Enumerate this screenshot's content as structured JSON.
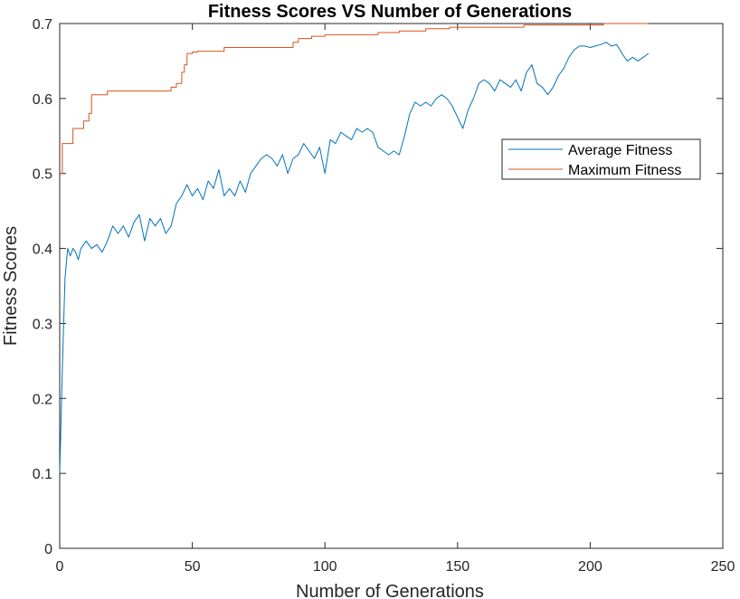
{
  "colors": {
    "average": "#0072BD",
    "maximum": "#D95319",
    "axis": "#262626",
    "background": "#ffffff"
  },
  "chart_data": {
    "type": "line",
    "title": "Fitness Scores VS Number of Generations",
    "xlabel": "Number of Generations",
    "ylabel": "Fitness Scores",
    "xlim": [
      0,
      250
    ],
    "ylim": [
      0,
      0.7
    ],
    "xticks": [
      "0",
      "50",
      "100",
      "150",
      "200",
      "250"
    ],
    "yticks": [
      "0",
      "0.1",
      "0.2",
      "0.3",
      "0.4",
      "0.5",
      "0.6",
      "0.7"
    ],
    "grid": false,
    "legend_location": "upper-right (inset)",
    "series": [
      {
        "name": "Average Fitness",
        "color": "#0072BD",
        "x": [
          0,
          1,
          2,
          3,
          4,
          5,
          6,
          7,
          8,
          10,
          12,
          14,
          16,
          18,
          20,
          22,
          24,
          26,
          28,
          30,
          32,
          34,
          36,
          38,
          40,
          42,
          44,
          46,
          48,
          50,
          52,
          54,
          56,
          58,
          60,
          62,
          64,
          66,
          68,
          70,
          72,
          74,
          76,
          78,
          80,
          82,
          84,
          86,
          88,
          90,
          92,
          94,
          96,
          98,
          100,
          102,
          104,
          106,
          108,
          110,
          112,
          114,
          116,
          118,
          120,
          122,
          124,
          126,
          128,
          130,
          132,
          134,
          136,
          138,
          140,
          142,
          144,
          146,
          148,
          150,
          152,
          154,
          156,
          158,
          160,
          162,
          164,
          166,
          168,
          170,
          172,
          174,
          176,
          178,
          180,
          182,
          184,
          186,
          188,
          190,
          192,
          194,
          196,
          198,
          200,
          202,
          204,
          206,
          208,
          210,
          212,
          214,
          216,
          218,
          220,
          222
        ],
        "y": [
          0.1,
          0.24,
          0.36,
          0.4,
          0.39,
          0.4,
          0.395,
          0.385,
          0.4,
          0.41,
          0.4,
          0.405,
          0.395,
          0.41,
          0.43,
          0.42,
          0.43,
          0.415,
          0.435,
          0.445,
          0.41,
          0.44,
          0.43,
          0.44,
          0.42,
          0.43,
          0.46,
          0.47,
          0.485,
          0.47,
          0.48,
          0.465,
          0.49,
          0.48,
          0.505,
          0.47,
          0.48,
          0.47,
          0.49,
          0.475,
          0.5,
          0.51,
          0.52,
          0.525,
          0.52,
          0.51,
          0.525,
          0.5,
          0.52,
          0.525,
          0.54,
          0.53,
          0.52,
          0.535,
          0.5,
          0.545,
          0.54,
          0.555,
          0.55,
          0.545,
          0.56,
          0.555,
          0.56,
          0.555,
          0.535,
          0.53,
          0.525,
          0.53,
          0.525,
          0.55,
          0.58,
          0.595,
          0.59,
          0.595,
          0.59,
          0.6,
          0.605,
          0.6,
          0.59,
          0.575,
          0.56,
          0.585,
          0.6,
          0.62,
          0.625,
          0.62,
          0.61,
          0.625,
          0.62,
          0.615,
          0.625,
          0.61,
          0.635,
          0.645,
          0.62,
          0.615,
          0.605,
          0.615,
          0.63,
          0.64,
          0.655,
          0.665,
          0.67,
          0.67,
          0.668,
          0.67,
          0.672,
          0.675,
          0.67,
          0.672,
          0.66,
          0.65,
          0.655,
          0.65,
          0.655,
          0.66
        ]
      },
      {
        "name": "Maximum Fitness",
        "color": "#D95319",
        "x": [
          0,
          1,
          1,
          5,
          5,
          9,
          9,
          11,
          11,
          12,
          12,
          18,
          18,
          42,
          42,
          44,
          44,
          46,
          46,
          47,
          47,
          48,
          48,
          50,
          50,
          52,
          52,
          62,
          62,
          88,
          88,
          90,
          90,
          95,
          95,
          100,
          100,
          120,
          120,
          128,
          128,
          138,
          138,
          147,
          147,
          175,
          175,
          205,
          205,
          222
        ],
        "y": [
          0.5,
          0.5,
          0.54,
          0.54,
          0.56,
          0.56,
          0.57,
          0.57,
          0.58,
          0.58,
          0.605,
          0.605,
          0.61,
          0.61,
          0.615,
          0.615,
          0.62,
          0.62,
          0.635,
          0.635,
          0.645,
          0.645,
          0.66,
          0.66,
          0.662,
          0.662,
          0.663,
          0.663,
          0.668,
          0.668,
          0.675,
          0.675,
          0.68,
          0.68,
          0.683,
          0.683,
          0.685,
          0.685,
          0.688,
          0.688,
          0.69,
          0.69,
          0.693,
          0.693,
          0.695,
          0.695,
          0.698,
          0.698,
          0.7,
          0.7
        ]
      }
    ]
  }
}
